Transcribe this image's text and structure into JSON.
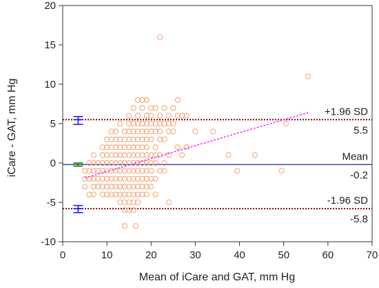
{
  "chart_data": {
    "type": "scatter",
    "title": "",
    "xlabel": "Mean of iCare and GAT, mm Hg",
    "ylabel": "iCare - GAT, mm Hg",
    "xlim": [
      0,
      70
    ],
    "ylim": [
      -10,
      20
    ],
    "xticks": [
      0,
      10,
      20,
      30,
      40,
      50,
      60,
      70
    ],
    "yticks": [
      -10,
      -5,
      0,
      5,
      10,
      15,
      20
    ],
    "grid": false,
    "reference_lines": [
      {
        "name": "+1.96 SD",
        "value": 5.5,
        "value_label": "5.5",
        "style": "dotted",
        "color": "#8b0000"
      },
      {
        "name": "Mean",
        "value": -0.2,
        "value_label": "-0.2",
        "style": "solid",
        "color": "#1f1fa8"
      },
      {
        "name": "-1.96 SD",
        "value": -5.8,
        "value_label": "-5.8",
        "style": "dotted",
        "color": "#8b0000"
      }
    ],
    "regression_line": {
      "x": [
        5,
        55.5
      ],
      "y": [
        -1.9,
        6.4
      ],
      "color": "#ff33ff"
    },
    "ci_bars": [
      {
        "x": 3.5,
        "center": 5.5,
        "low": 4.9,
        "high": 5.9,
        "color": "#1a1aff"
      },
      {
        "x": 3.5,
        "center": -0.2,
        "low": -0.4,
        "high": 0.0,
        "color": "#1f7a1f"
      },
      {
        "x": 3.5,
        "center": -5.8,
        "low": -6.3,
        "high": -5.4,
        "color": "#1a1aff"
      }
    ],
    "marker_color": "#f0a070",
    "points": [
      [
        22,
        16
      ],
      [
        55.5,
        11
      ],
      [
        17,
        8
      ],
      [
        18,
        8
      ],
      [
        19,
        8
      ],
      [
        26,
        8
      ],
      [
        16,
        7
      ],
      [
        18,
        7
      ],
      [
        20,
        7
      ],
      [
        21,
        7
      ],
      [
        23,
        7
      ],
      [
        25,
        7
      ],
      [
        15,
        6
      ],
      [
        17,
        6
      ],
      [
        19,
        6
      ],
      [
        20,
        6
      ],
      [
        22,
        6
      ],
      [
        24,
        6
      ],
      [
        26,
        6
      ],
      [
        27,
        6
      ],
      [
        28,
        6
      ],
      [
        13,
        5
      ],
      [
        15,
        5
      ],
      [
        16,
        5
      ],
      [
        17,
        5
      ],
      [
        18,
        5
      ],
      [
        19,
        5
      ],
      [
        20,
        5
      ],
      [
        21,
        5
      ],
      [
        22,
        5
      ],
      [
        23,
        5
      ],
      [
        24,
        5
      ],
      [
        25,
        5
      ],
      [
        50.5,
        5
      ],
      [
        11,
        4
      ],
      [
        12,
        4
      ],
      [
        14,
        4
      ],
      [
        15,
        4
      ],
      [
        16,
        4
      ],
      [
        17,
        4
      ],
      [
        18,
        4
      ],
      [
        19,
        4
      ],
      [
        20,
        4
      ],
      [
        21,
        4
      ],
      [
        22,
        4
      ],
      [
        24,
        4
      ],
      [
        25,
        4
      ],
      [
        30,
        4
      ],
      [
        34,
        4
      ],
      [
        10,
        3
      ],
      [
        11,
        3
      ],
      [
        12,
        3
      ],
      [
        13,
        3
      ],
      [
        14,
        3
      ],
      [
        15,
        3
      ],
      [
        16,
        3
      ],
      [
        17,
        3
      ],
      [
        18,
        3
      ],
      [
        19,
        3
      ],
      [
        20,
        3
      ],
      [
        22,
        3
      ],
      [
        23,
        3
      ],
      [
        9,
        2
      ],
      [
        10,
        2
      ],
      [
        11,
        2
      ],
      [
        12,
        2
      ],
      [
        13,
        2
      ],
      [
        14,
        2
      ],
      [
        15,
        2
      ],
      [
        16,
        2
      ],
      [
        17,
        2
      ],
      [
        18,
        2
      ],
      [
        19,
        2
      ],
      [
        21,
        2
      ],
      [
        26,
        2
      ],
      [
        28,
        2
      ],
      [
        7,
        1
      ],
      [
        9,
        1
      ],
      [
        10,
        1
      ],
      [
        11,
        1
      ],
      [
        12,
        1
      ],
      [
        13,
        1
      ],
      [
        14,
        1
      ],
      [
        15,
        1
      ],
      [
        16,
        1
      ],
      [
        17,
        1
      ],
      [
        18,
        1
      ],
      [
        19,
        1
      ],
      [
        20,
        1
      ],
      [
        21,
        1
      ],
      [
        22,
        1
      ],
      [
        24,
        1
      ],
      [
        27,
        1
      ],
      [
        37.5,
        1
      ],
      [
        43.5,
        1
      ],
      [
        6,
        0
      ],
      [
        7,
        0
      ],
      [
        8,
        0
      ],
      [
        9,
        0
      ],
      [
        10,
        0
      ],
      [
        11,
        0
      ],
      [
        12,
        0
      ],
      [
        13,
        0
      ],
      [
        14,
        0
      ],
      [
        15,
        0
      ],
      [
        16,
        0
      ],
      [
        17,
        0
      ],
      [
        18,
        0
      ],
      [
        19,
        0
      ],
      [
        20,
        0
      ],
      [
        21,
        0
      ],
      [
        23,
        0
      ],
      [
        5,
        -1
      ],
      [
        6,
        -1
      ],
      [
        7,
        -1
      ],
      [
        8,
        -1
      ],
      [
        9,
        -1
      ],
      [
        10,
        -1
      ],
      [
        11,
        -1
      ],
      [
        12,
        -1
      ],
      [
        13,
        -1
      ],
      [
        14,
        -1
      ],
      [
        15,
        -1
      ],
      [
        16,
        -1
      ],
      [
        17,
        -1
      ],
      [
        18,
        -1
      ],
      [
        19,
        -1
      ],
      [
        20,
        -1
      ],
      [
        22,
        -1
      ],
      [
        23,
        -1
      ],
      [
        39.5,
        -1
      ],
      [
        49.5,
        -1
      ],
      [
        5,
        -2
      ],
      [
        6,
        -2
      ],
      [
        7,
        -2
      ],
      [
        8,
        -2
      ],
      [
        9,
        -2
      ],
      [
        10,
        -2
      ],
      [
        11,
        -2
      ],
      [
        12,
        -2
      ],
      [
        13,
        -2
      ],
      [
        14,
        -2
      ],
      [
        15,
        -2
      ],
      [
        16,
        -2
      ],
      [
        17,
        -2
      ],
      [
        18,
        -2
      ],
      [
        19,
        -2
      ],
      [
        20,
        -2
      ],
      [
        21,
        -2
      ],
      [
        5,
        -3
      ],
      [
        7,
        -3
      ],
      [
        8,
        -3
      ],
      [
        9,
        -3
      ],
      [
        10,
        -3
      ],
      [
        11,
        -3
      ],
      [
        12,
        -3
      ],
      [
        13,
        -3
      ],
      [
        14,
        -3
      ],
      [
        15,
        -3
      ],
      [
        16,
        -3
      ],
      [
        17,
        -3
      ],
      [
        18,
        -3
      ],
      [
        19,
        -3
      ],
      [
        20,
        -3
      ],
      [
        6,
        -4
      ],
      [
        7,
        -4
      ],
      [
        9,
        -4
      ],
      [
        10,
        -4
      ],
      [
        11,
        -4
      ],
      [
        12,
        -4
      ],
      [
        13,
        -4
      ],
      [
        14,
        -4
      ],
      [
        15,
        -4
      ],
      [
        16,
        -4
      ],
      [
        17,
        -4
      ],
      [
        18,
        -4
      ],
      [
        19,
        -4
      ],
      [
        21,
        -4
      ],
      [
        13,
        -5
      ],
      [
        14,
        -5
      ],
      [
        15,
        -5
      ],
      [
        16,
        -5
      ],
      [
        17,
        -5
      ],
      [
        24,
        -5
      ],
      [
        14,
        -6
      ],
      [
        15,
        -6
      ],
      [
        16,
        -6
      ],
      [
        14,
        -8
      ],
      [
        16.5,
        -8
      ]
    ]
  }
}
